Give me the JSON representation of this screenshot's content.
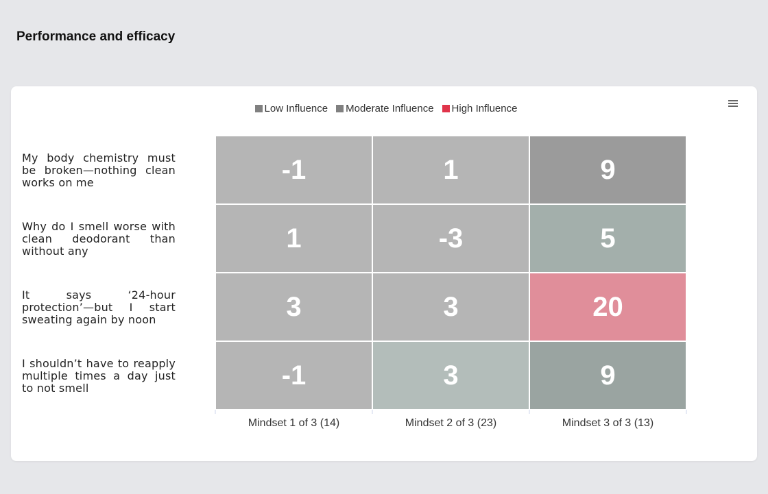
{
  "page_title": "Performance and efficacy",
  "menu_icon": "hamburger-menu-icon",
  "legend": [
    {
      "label": "Low Influence",
      "color": "#808080"
    },
    {
      "label": "Moderate Influence",
      "color": "#808080"
    },
    {
      "label": "High Influence",
      "color": "#e0344a"
    }
  ],
  "chart_data": {
    "type": "heatmap",
    "title": "Performance and efficacy",
    "x_categories": [
      "Mindset 1 of 3 (14)",
      "Mindset 2 of 3 (23)",
      "Mindset 3 of 3 (13)"
    ],
    "y_categories": [
      "My body chemistry must be broken—nothing clean works on me",
      "Why do I smell worse with clean deodorant than without any",
      "It says ‘24-hour protection’—but I start sweating again by noon",
      "I shouldn’t have to reapply multiple times a day just to not smell"
    ],
    "values": [
      [
        -1,
        1,
        9
      ],
      [
        1,
        -3,
        5
      ],
      [
        3,
        3,
        20
      ],
      [
        -1,
        3,
        9
      ]
    ],
    "cell_colors": [
      [
        "#b5b5b5",
        "#b5b5b5",
        "#9b9b9b"
      ],
      [
        "#b5b5b5",
        "#b5b5b5",
        "#a3afab"
      ],
      [
        "#b5b5b5",
        "#b5b5b5",
        "#e08e9a"
      ],
      [
        "#b5b5b5",
        "#b3bdba",
        "#9aa4a1"
      ]
    ],
    "legend_position": "top-center"
  }
}
